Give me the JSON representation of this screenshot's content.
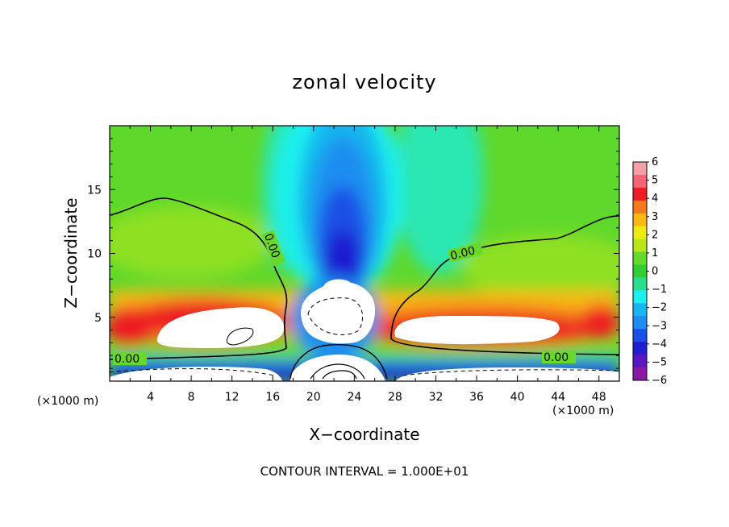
{
  "chart_data": {
    "type": "heatmap",
    "title": "zonal velocity",
    "xlabel": "X−coordinate",
    "ylabel": "Z−coordinate",
    "x_unit_label": "(×1000 m)",
    "x_unit_label_right": "(×1000 m)",
    "xlim": [
      0,
      50
    ],
    "ylim": [
      0,
      20
    ],
    "x_ticks": [
      4,
      8,
      12,
      16,
      20,
      24,
      28,
      32,
      36,
      40,
      44,
      48
    ],
    "x_tick_labels": [
      "4",
      "8",
      "12",
      "16",
      "20",
      "24",
      "28",
      "32",
      "36",
      "40",
      "44",
      "48"
    ],
    "y_ticks": [
      5,
      10,
      15
    ],
    "y_tick_labels": [
      "5",
      "10",
      "15"
    ],
    "colorbar": {
      "min": -6,
      "max": 6,
      "tick_labels": [
        "6",
        "5",
        "4",
        "3",
        "2",
        "1",
        "0",
        "−1",
        "−2",
        "−3",
        "−4",
        "−5",
        "−6"
      ],
      "colors": [
        "#f2a0a8",
        "#f46472",
        "#ee1c24",
        "#f47a1e",
        "#f8b816",
        "#ecec12",
        "#b8e619",
        "#66d92a",
        "#33cc33",
        "#2adc8e",
        "#1cf0ee",
        "#18b6ee",
        "#1f8ef0",
        "#1a50e6",
        "#1f1ed2",
        "#5a18c0",
        "#8a1aa6"
      ]
    },
    "contour_labels": [
      "0.00",
      "0.00",
      "0.00",
      "0.00"
    ],
    "contour_interval_text": "CONTOUR INTERVAL = 1.000E+01"
  }
}
